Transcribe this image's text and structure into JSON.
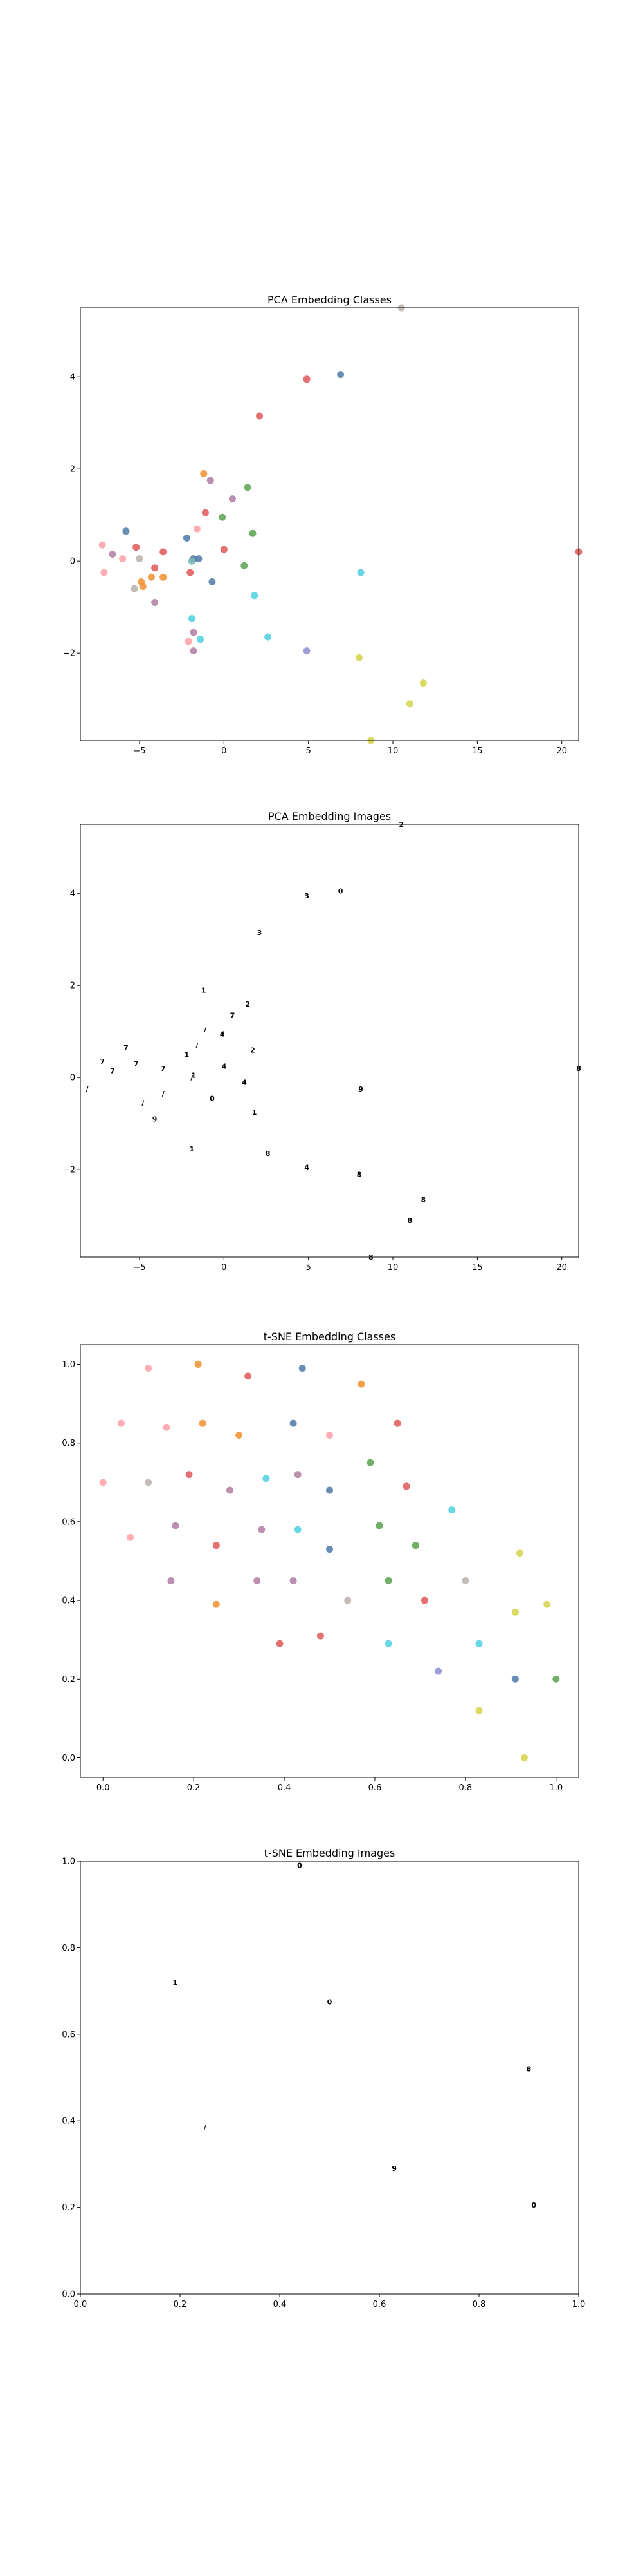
{
  "chart_data": [
    {
      "type": "scatter",
      "title": "PCA Embedding Classes",
      "xlabel": "",
      "ylabel": "",
      "xlim": [
        -8.5,
        21
      ],
      "ylim": [
        -3.9,
        5.5
      ],
      "xticks": [
        -5,
        0,
        5,
        10,
        15,
        20
      ],
      "yticks": [
        -2,
        0,
        2,
        4
      ],
      "grid": false,
      "points": [
        {
          "x": 4.9,
          "y": 3.95,
          "c": "#e15759"
        },
        {
          "x": 6.9,
          "y": 4.05,
          "c": "#4e79a7"
        },
        {
          "x": 2.1,
          "y": 3.15,
          "c": "#e15759"
        },
        {
          "x": -1.2,
          "y": 1.9,
          "c": "#f28e2b"
        },
        {
          "x": -0.8,
          "y": 1.75,
          "c": "#b07aa1"
        },
        {
          "x": 1.4,
          "y": 1.6,
          "c": "#59a14f"
        },
        {
          "x": 0.5,
          "y": 1.35,
          "c": "#b07aa1"
        },
        {
          "x": -1.1,
          "y": 1.05,
          "c": "#e15759"
        },
        {
          "x": -0.1,
          "y": 0.95,
          "c": "#59a14f"
        },
        {
          "x": -1.6,
          "y": 0.7,
          "c": "#ff9da7"
        },
        {
          "x": -5.8,
          "y": 0.65,
          "c": "#4e79a7"
        },
        {
          "x": 1.7,
          "y": 0.6,
          "c": "#59a14f"
        },
        {
          "x": -2.2,
          "y": 0.5,
          "c": "#4e79a7"
        },
        {
          "x": -7.2,
          "y": 0.35,
          "c": "#ff9da7"
        },
        {
          "x": -5.2,
          "y": 0.3,
          "c": "#e15759"
        },
        {
          "x": 0.0,
          "y": 0.25,
          "c": "#e15759"
        },
        {
          "x": -3.6,
          "y": 0.2,
          "c": "#e15759"
        },
        {
          "x": -6.6,
          "y": 0.15,
          "c": "#b07aa1"
        },
        {
          "x": -5.0,
          "y": 0.05,
          "c": "#bab0ac"
        },
        {
          "x": -6.0,
          "y": 0.05,
          "c": "#ff9da7"
        },
        {
          "x": -1.8,
          "y": 0.05,
          "c": "#4e79a7"
        },
        {
          "x": -1.9,
          "y": 0.0,
          "c": "#76b7b2"
        },
        {
          "x": -1.5,
          "y": 0.05,
          "c": "#4e79a7"
        },
        {
          "x": 1.2,
          "y": -0.1,
          "c": "#59a14f"
        },
        {
          "x": -4.1,
          "y": -0.15,
          "c": "#e15759"
        },
        {
          "x": -2.0,
          "y": -0.25,
          "c": "#e15759"
        },
        {
          "x": 8.1,
          "y": -0.25,
          "c": "#4dd0e1"
        },
        {
          "x": -7.1,
          "y": -0.25,
          "c": "#ff9da7"
        },
        {
          "x": -3.6,
          "y": -0.35,
          "c": "#f28e2b"
        },
        {
          "x": -4.3,
          "y": -0.35,
          "c": "#f28e2b"
        },
        {
          "x": -4.9,
          "y": -0.45,
          "c": "#f28e2b"
        },
        {
          "x": -0.7,
          "y": -0.45,
          "c": "#4e79a7"
        },
        {
          "x": -4.8,
          "y": -0.55,
          "c": "#f28e2b"
        },
        {
          "x": -5.3,
          "y": -0.6,
          "c": "#bab0ac"
        },
        {
          "x": 1.8,
          "y": -0.75,
          "c": "#4dd0e1"
        },
        {
          "x": -4.1,
          "y": -0.9,
          "c": "#b07aa1"
        },
        {
          "x": -1.9,
          "y": -1.25,
          "c": "#4dd0e1"
        },
        {
          "x": -1.8,
          "y": -1.55,
          "c": "#b07aa1"
        },
        {
          "x": 2.6,
          "y": -1.65,
          "c": "#4dd0e1"
        },
        {
          "x": -1.4,
          "y": -1.7,
          "c": "#4dd0e1"
        },
        {
          "x": -2.1,
          "y": -1.75,
          "c": "#ff9da7"
        },
        {
          "x": -1.8,
          "y": -1.95,
          "c": "#b07aa1"
        },
        {
          "x": 4.9,
          "y": -1.95,
          "c": "#8c8cd0"
        },
        {
          "x": 8.0,
          "y": -2.1,
          "c": "#d4d44a"
        },
        {
          "x": 11.8,
          "y": -2.65,
          "c": "#d4d44a"
        },
        {
          "x": 11.0,
          "y": -3.1,
          "c": "#d4d44a"
        },
        {
          "x": 8.7,
          "y": -3.9,
          "c": "#d4d44a"
        },
        {
          "x": 21.0,
          "y": 0.2,
          "c": "#e15759"
        },
        {
          "x": 10.5,
          "y": 5.5,
          "c": "#bab0ac"
        }
      ]
    },
    {
      "type": "scatter",
      "title": "PCA Embedding Images",
      "xlabel": "",
      "ylabel": "",
      "xlim": [
        -8.5,
        21
      ],
      "ylim": [
        -3.9,
        5.5
      ],
      "xticks": [
        -5,
        0,
        5,
        10,
        15,
        20
      ],
      "yticks": [
        -2,
        0,
        2,
        4
      ],
      "grid": false,
      "points": [
        {
          "x": 10.5,
          "y": 5.5,
          "glyph": "2"
        },
        {
          "x": 4.9,
          "y": 3.95,
          "glyph": "3"
        },
        {
          "x": 6.9,
          "y": 4.05,
          "glyph": "0"
        },
        {
          "x": 2.1,
          "y": 3.15,
          "glyph": "3"
        },
        {
          "x": -1.2,
          "y": 1.9,
          "glyph": "1"
        },
        {
          "x": 1.4,
          "y": 1.6,
          "glyph": "2"
        },
        {
          "x": 0.5,
          "y": 1.35,
          "glyph": "7"
        },
        {
          "x": -1.1,
          "y": 1.05,
          "glyph": "/"
        },
        {
          "x": -0.1,
          "y": 0.95,
          "glyph": "4"
        },
        {
          "x": -1.6,
          "y": 0.7,
          "glyph": "/"
        },
        {
          "x": -5.8,
          "y": 0.65,
          "glyph": "7"
        },
        {
          "x": 1.7,
          "y": 0.6,
          "glyph": "2"
        },
        {
          "x": -2.2,
          "y": 0.5,
          "glyph": "1"
        },
        {
          "x": -7.2,
          "y": 0.35,
          "glyph": "7"
        },
        {
          "x": -5.2,
          "y": 0.3,
          "glyph": "7"
        },
        {
          "x": 0.0,
          "y": 0.25,
          "glyph": "4"
        },
        {
          "x": -3.6,
          "y": 0.2,
          "glyph": "7"
        },
        {
          "x": -6.6,
          "y": 0.15,
          "glyph": "7"
        },
        {
          "x": -1.8,
          "y": 0.05,
          "glyph": "1"
        },
        {
          "x": -1.9,
          "y": 0.0,
          "glyph": "/"
        },
        {
          "x": 21.0,
          "y": 0.2,
          "glyph": "8"
        },
        {
          "x": 1.2,
          "y": -0.1,
          "glyph": "4"
        },
        {
          "x": -8.1,
          "y": -0.25,
          "glyph": "/"
        },
        {
          "x": 8.1,
          "y": -0.25,
          "glyph": "9"
        },
        {
          "x": -3.6,
          "y": -0.35,
          "glyph": "/"
        },
        {
          "x": -0.7,
          "y": -0.45,
          "glyph": "0"
        },
        {
          "x": -4.8,
          "y": -0.55,
          "glyph": "/"
        },
        {
          "x": 1.8,
          "y": -0.75,
          "glyph": "1"
        },
        {
          "x": -4.1,
          "y": -0.9,
          "glyph": "9"
        },
        {
          "x": -1.9,
          "y": -1.55,
          "glyph": "1"
        },
        {
          "x": 2.6,
          "y": -1.65,
          "glyph": "8"
        },
        {
          "x": 4.9,
          "y": -1.95,
          "glyph": "4"
        },
        {
          "x": 8.0,
          "y": -2.1,
          "glyph": "8"
        },
        {
          "x": 11.8,
          "y": -2.65,
          "glyph": "8"
        },
        {
          "x": 11.0,
          "y": -3.1,
          "glyph": "8"
        },
        {
          "x": 8.7,
          "y": -3.9,
          "glyph": "8"
        }
      ]
    },
    {
      "type": "scatter",
      "title": "t-SNE Embedding Classes",
      "xlabel": "",
      "ylabel": "",
      "xlim": [
        -0.05,
        1.05
      ],
      "ylim": [
        -0.05,
        1.05
      ],
      "xticks": [
        0.0,
        0.2,
        0.4,
        0.6,
        0.8,
        1.0
      ],
      "yticks": [
        0.0,
        0.2,
        0.4,
        0.6,
        0.8,
        1.0
      ],
      "grid": false,
      "points": [
        {
          "x": 0.1,
          "y": 0.99,
          "c": "#ff9da7"
        },
        {
          "x": 0.21,
          "y": 1.0,
          "c": "#f28e2b"
        },
        {
          "x": 0.32,
          "y": 0.97,
          "c": "#e15759"
        },
        {
          "x": 0.44,
          "y": 0.99,
          "c": "#4e79a7"
        },
        {
          "x": 0.57,
          "y": 0.95,
          "c": "#f28e2b"
        },
        {
          "x": 0.04,
          "y": 0.85,
          "c": "#ff9da7"
        },
        {
          "x": 0.14,
          "y": 0.84,
          "c": "#ff9da7"
        },
        {
          "x": 0.22,
          "y": 0.85,
          "c": "#f28e2b"
        },
        {
          "x": 0.3,
          "y": 0.82,
          "c": "#f28e2b"
        },
        {
          "x": 0.42,
          "y": 0.85,
          "c": "#4e79a7"
        },
        {
          "x": 0.5,
          "y": 0.82,
          "c": "#ff9da7"
        },
        {
          "x": 0.65,
          "y": 0.85,
          "c": "#e15759"
        },
        {
          "x": 0.59,
          "y": 0.75,
          "c": "#59a14f"
        },
        {
          "x": -0.0,
          "y": 0.7,
          "c": "#ff9da7"
        },
        {
          "x": 0.1,
          "y": 0.7,
          "c": "#bab0ac"
        },
        {
          "x": 0.19,
          "y": 0.72,
          "c": "#e15759"
        },
        {
          "x": 0.28,
          "y": 0.68,
          "c": "#b07aa1"
        },
        {
          "x": 0.36,
          "y": 0.71,
          "c": "#4dd0e1"
        },
        {
          "x": 0.43,
          "y": 0.72,
          "c": "#b07aa1"
        },
        {
          "x": 0.5,
          "y": 0.68,
          "c": "#4e79a7"
        },
        {
          "x": 0.67,
          "y": 0.69,
          "c": "#e15759"
        },
        {
          "x": 0.77,
          "y": 0.63,
          "c": "#4dd0e1"
        },
        {
          "x": 0.06,
          "y": 0.56,
          "c": "#ff9da7"
        },
        {
          "x": 0.16,
          "y": 0.59,
          "c": "#b07aa1"
        },
        {
          "x": 0.25,
          "y": 0.54,
          "c": "#e15759"
        },
        {
          "x": 0.35,
          "y": 0.58,
          "c": "#b07aa1"
        },
        {
          "x": 0.43,
          "y": 0.58,
          "c": "#4dd0e1"
        },
        {
          "x": 0.5,
          "y": 0.53,
          "c": "#4e79a7"
        },
        {
          "x": 0.61,
          "y": 0.59,
          "c": "#59a14f"
        },
        {
          "x": 0.69,
          "y": 0.54,
          "c": "#59a14f"
        },
        {
          "x": 0.92,
          "y": 0.52,
          "c": "#d4d44a"
        },
        {
          "x": 0.15,
          "y": 0.45,
          "c": "#b07aa1"
        },
        {
          "x": 0.25,
          "y": 0.39,
          "c": "#f28e2b"
        },
        {
          "x": 0.34,
          "y": 0.45,
          "c": "#b07aa1"
        },
        {
          "x": 0.42,
          "y": 0.45,
          "c": "#b07aa1"
        },
        {
          "x": 0.54,
          "y": 0.4,
          "c": "#bab0ac"
        },
        {
          "x": 0.63,
          "y": 0.45,
          "c": "#59a14f"
        },
        {
          "x": 0.71,
          "y": 0.4,
          "c": "#e15759"
        },
        {
          "x": 0.8,
          "y": 0.45,
          "c": "#bab0ac"
        },
        {
          "x": 0.98,
          "y": 0.39,
          "c": "#d4d44a"
        },
        {
          "x": 0.91,
          "y": 0.37,
          "c": "#d4d44a"
        },
        {
          "x": 0.39,
          "y": 0.29,
          "c": "#e15759"
        },
        {
          "x": 0.48,
          "y": 0.31,
          "c": "#e15759"
        },
        {
          "x": 0.63,
          "y": 0.29,
          "c": "#4dd0e1"
        },
        {
          "x": 0.83,
          "y": 0.29,
          "c": "#4dd0e1"
        },
        {
          "x": 0.74,
          "y": 0.22,
          "c": "#8c8cd0"
        },
        {
          "x": 0.91,
          "y": 0.2,
          "c": "#4e79a7"
        },
        {
          "x": 1.0,
          "y": 0.2,
          "c": "#59a14f"
        },
        {
          "x": 0.83,
          "y": 0.12,
          "c": "#d4d44a"
        },
        {
          "x": 0.93,
          "y": 0.0,
          "c": "#d4d44a"
        }
      ]
    },
    {
      "type": "scatter",
      "title": "t-SNE Embedding Images",
      "xlabel": "",
      "ylabel": "",
      "xlim": [
        0.0,
        1.0
      ],
      "ylim": [
        0.0,
        1.0
      ],
      "xticks": [
        0.0,
        0.2,
        0.4,
        0.6,
        0.8,
        1.0
      ],
      "yticks": [
        0.0,
        0.2,
        0.4,
        0.6,
        0.8,
        1.0
      ],
      "grid": false,
      "points": [
        {
          "x": 0.44,
          "y": 0.99,
          "glyph": "0"
        },
        {
          "x": 0.19,
          "y": 0.72,
          "glyph": "1"
        },
        {
          "x": 0.5,
          "y": 0.675,
          "glyph": "0"
        },
        {
          "x": 0.9,
          "y": 0.52,
          "glyph": "8"
        },
        {
          "x": 0.25,
          "y": 0.385,
          "glyph": "/"
        },
        {
          "x": 0.63,
          "y": 0.29,
          "glyph": "9"
        },
        {
          "x": 0.91,
          "y": 0.205,
          "glyph": "0"
        }
      ]
    }
  ]
}
